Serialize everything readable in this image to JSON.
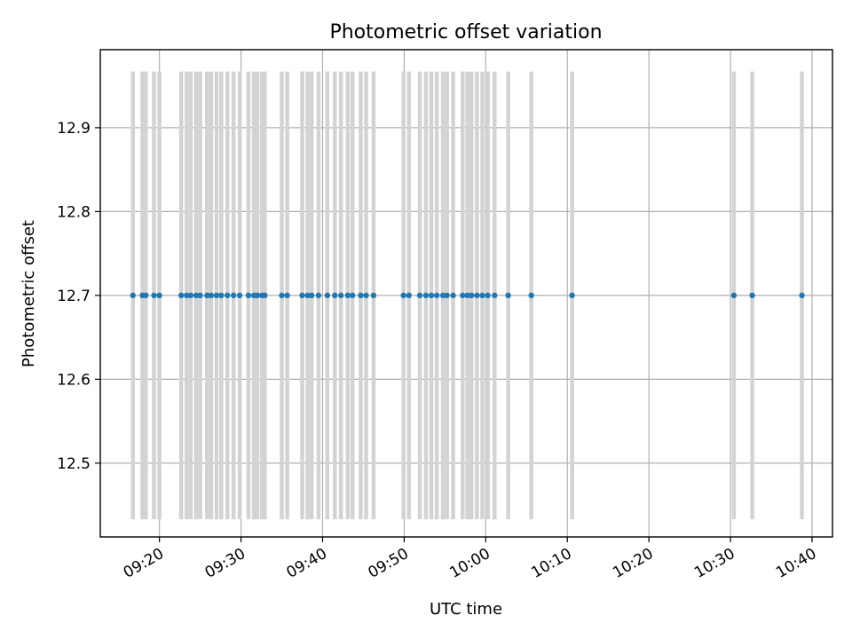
{
  "chart_data": {
    "type": "scatter",
    "title": "Photometric offset variation",
    "xlabel": "UTC time",
    "ylabel": "Photometric offset",
    "x_unit": "UTC time of day (HH:MM)",
    "xlim": [
      "09:12:45",
      "10:42:30"
    ],
    "ylim": [
      12.412,
      12.993
    ],
    "xticks": [
      "09:20",
      "09:30",
      "09:40",
      "09:50",
      "10:00",
      "10:10",
      "10:20",
      "10:30",
      "10:40"
    ],
    "yticks": [
      12.5,
      12.6,
      12.7,
      12.8,
      12.9
    ],
    "grid": true,
    "series": [
      {
        "x": [
          "09:16:45",
          "09:17:55",
          "09:18:20",
          "09:19:20",
          "09:20:00",
          "09:22:40",
          "09:23:20",
          "09:23:50",
          "09:24:30",
          "09:25:00",
          "09:25:50",
          "09:26:20",
          "09:27:00",
          "09:27:35",
          "09:28:20",
          "09:29:05",
          "09:29:50",
          "09:30:55",
          "09:31:35",
          "09:32:00",
          "09:32:35",
          "09:32:55",
          "09:35:00",
          "09:35:40",
          "09:37:30",
          "09:38:10",
          "09:38:40",
          "09:39:30",
          "09:40:35",
          "09:41:30",
          "09:42:15",
          "09:43:05",
          "09:43:40",
          "09:44:40",
          "09:45:20",
          "09:46:15",
          "09:49:55",
          "09:50:35",
          "09:51:55",
          "09:52:40",
          "09:53:20",
          "09:54:00",
          "09:54:45",
          "09:55:15",
          "09:56:00",
          "09:57:10",
          "09:57:45",
          "09:58:15",
          "09:58:55",
          "09:59:35",
          "10:00:15",
          "10:01:05",
          "10:02:45",
          "10:05:35",
          "10:10:35",
          "10:30:25",
          "10:32:40",
          "10:38:45"
        ],
        "y": [
          12.7,
          12.7,
          12.7,
          12.7,
          12.7,
          12.7,
          12.7,
          12.7,
          12.7,
          12.7,
          12.7,
          12.7,
          12.7,
          12.7,
          12.7,
          12.7,
          12.7,
          12.7,
          12.7,
          12.7,
          12.7,
          12.7,
          12.7,
          12.7,
          12.7,
          12.7,
          12.7,
          12.7,
          12.7,
          12.7,
          12.7,
          12.7,
          12.7,
          12.7,
          12.7,
          12.7,
          12.7,
          12.7,
          12.7,
          12.7,
          12.7,
          12.7,
          12.7,
          12.7,
          12.7,
          12.7,
          12.7,
          12.7,
          12.7,
          12.7,
          12.7,
          12.7,
          12.7,
          12.7,
          12.7,
          12.7,
          12.7,
          12.7
        ],
        "yerr": 0.267
      }
    ],
    "colors": {
      "points": "#1f77b4",
      "error_bars": "#d3d3d3",
      "grid": "#b0b0b0"
    }
  }
}
